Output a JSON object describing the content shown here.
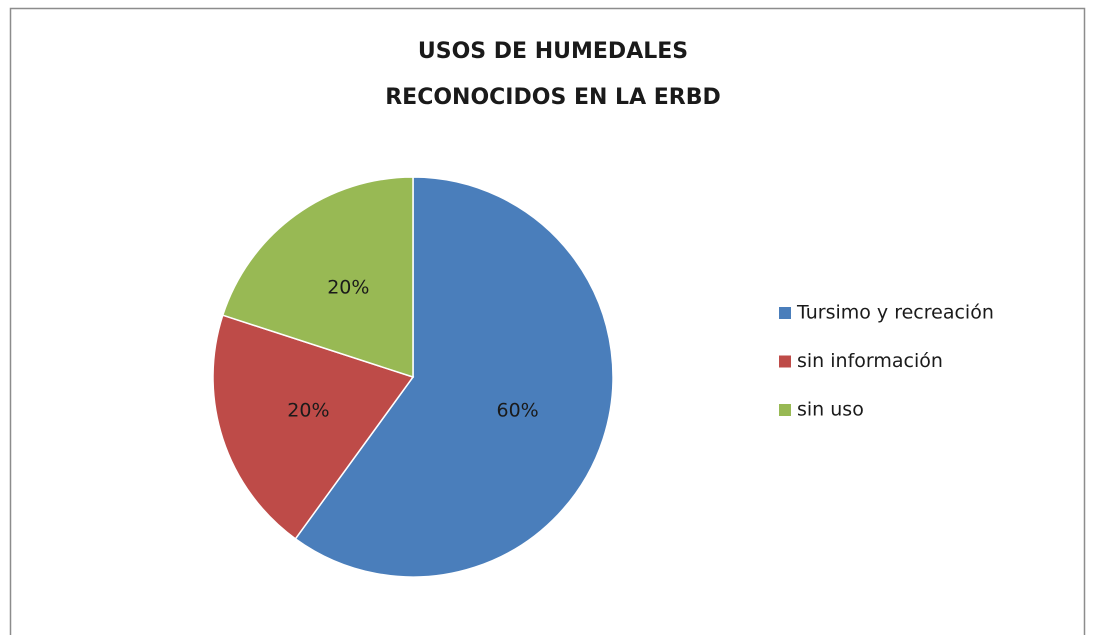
{
  "chart_data": {
    "type": "pie",
    "title": [
      "USOS DE HUMEDALES",
      "RECONOCIDOS EN LA ERBD"
    ],
    "categories": [
      "Tursimo y recreación",
      "sin información",
      "sin uso"
    ],
    "values": [
      60,
      20,
      20
    ],
    "value_labels": [
      "60%",
      "20%",
      "20%"
    ],
    "colors": [
      "#4a7ebb",
      "#be4b48",
      "#98b954"
    ],
    "legend": "right"
  }
}
